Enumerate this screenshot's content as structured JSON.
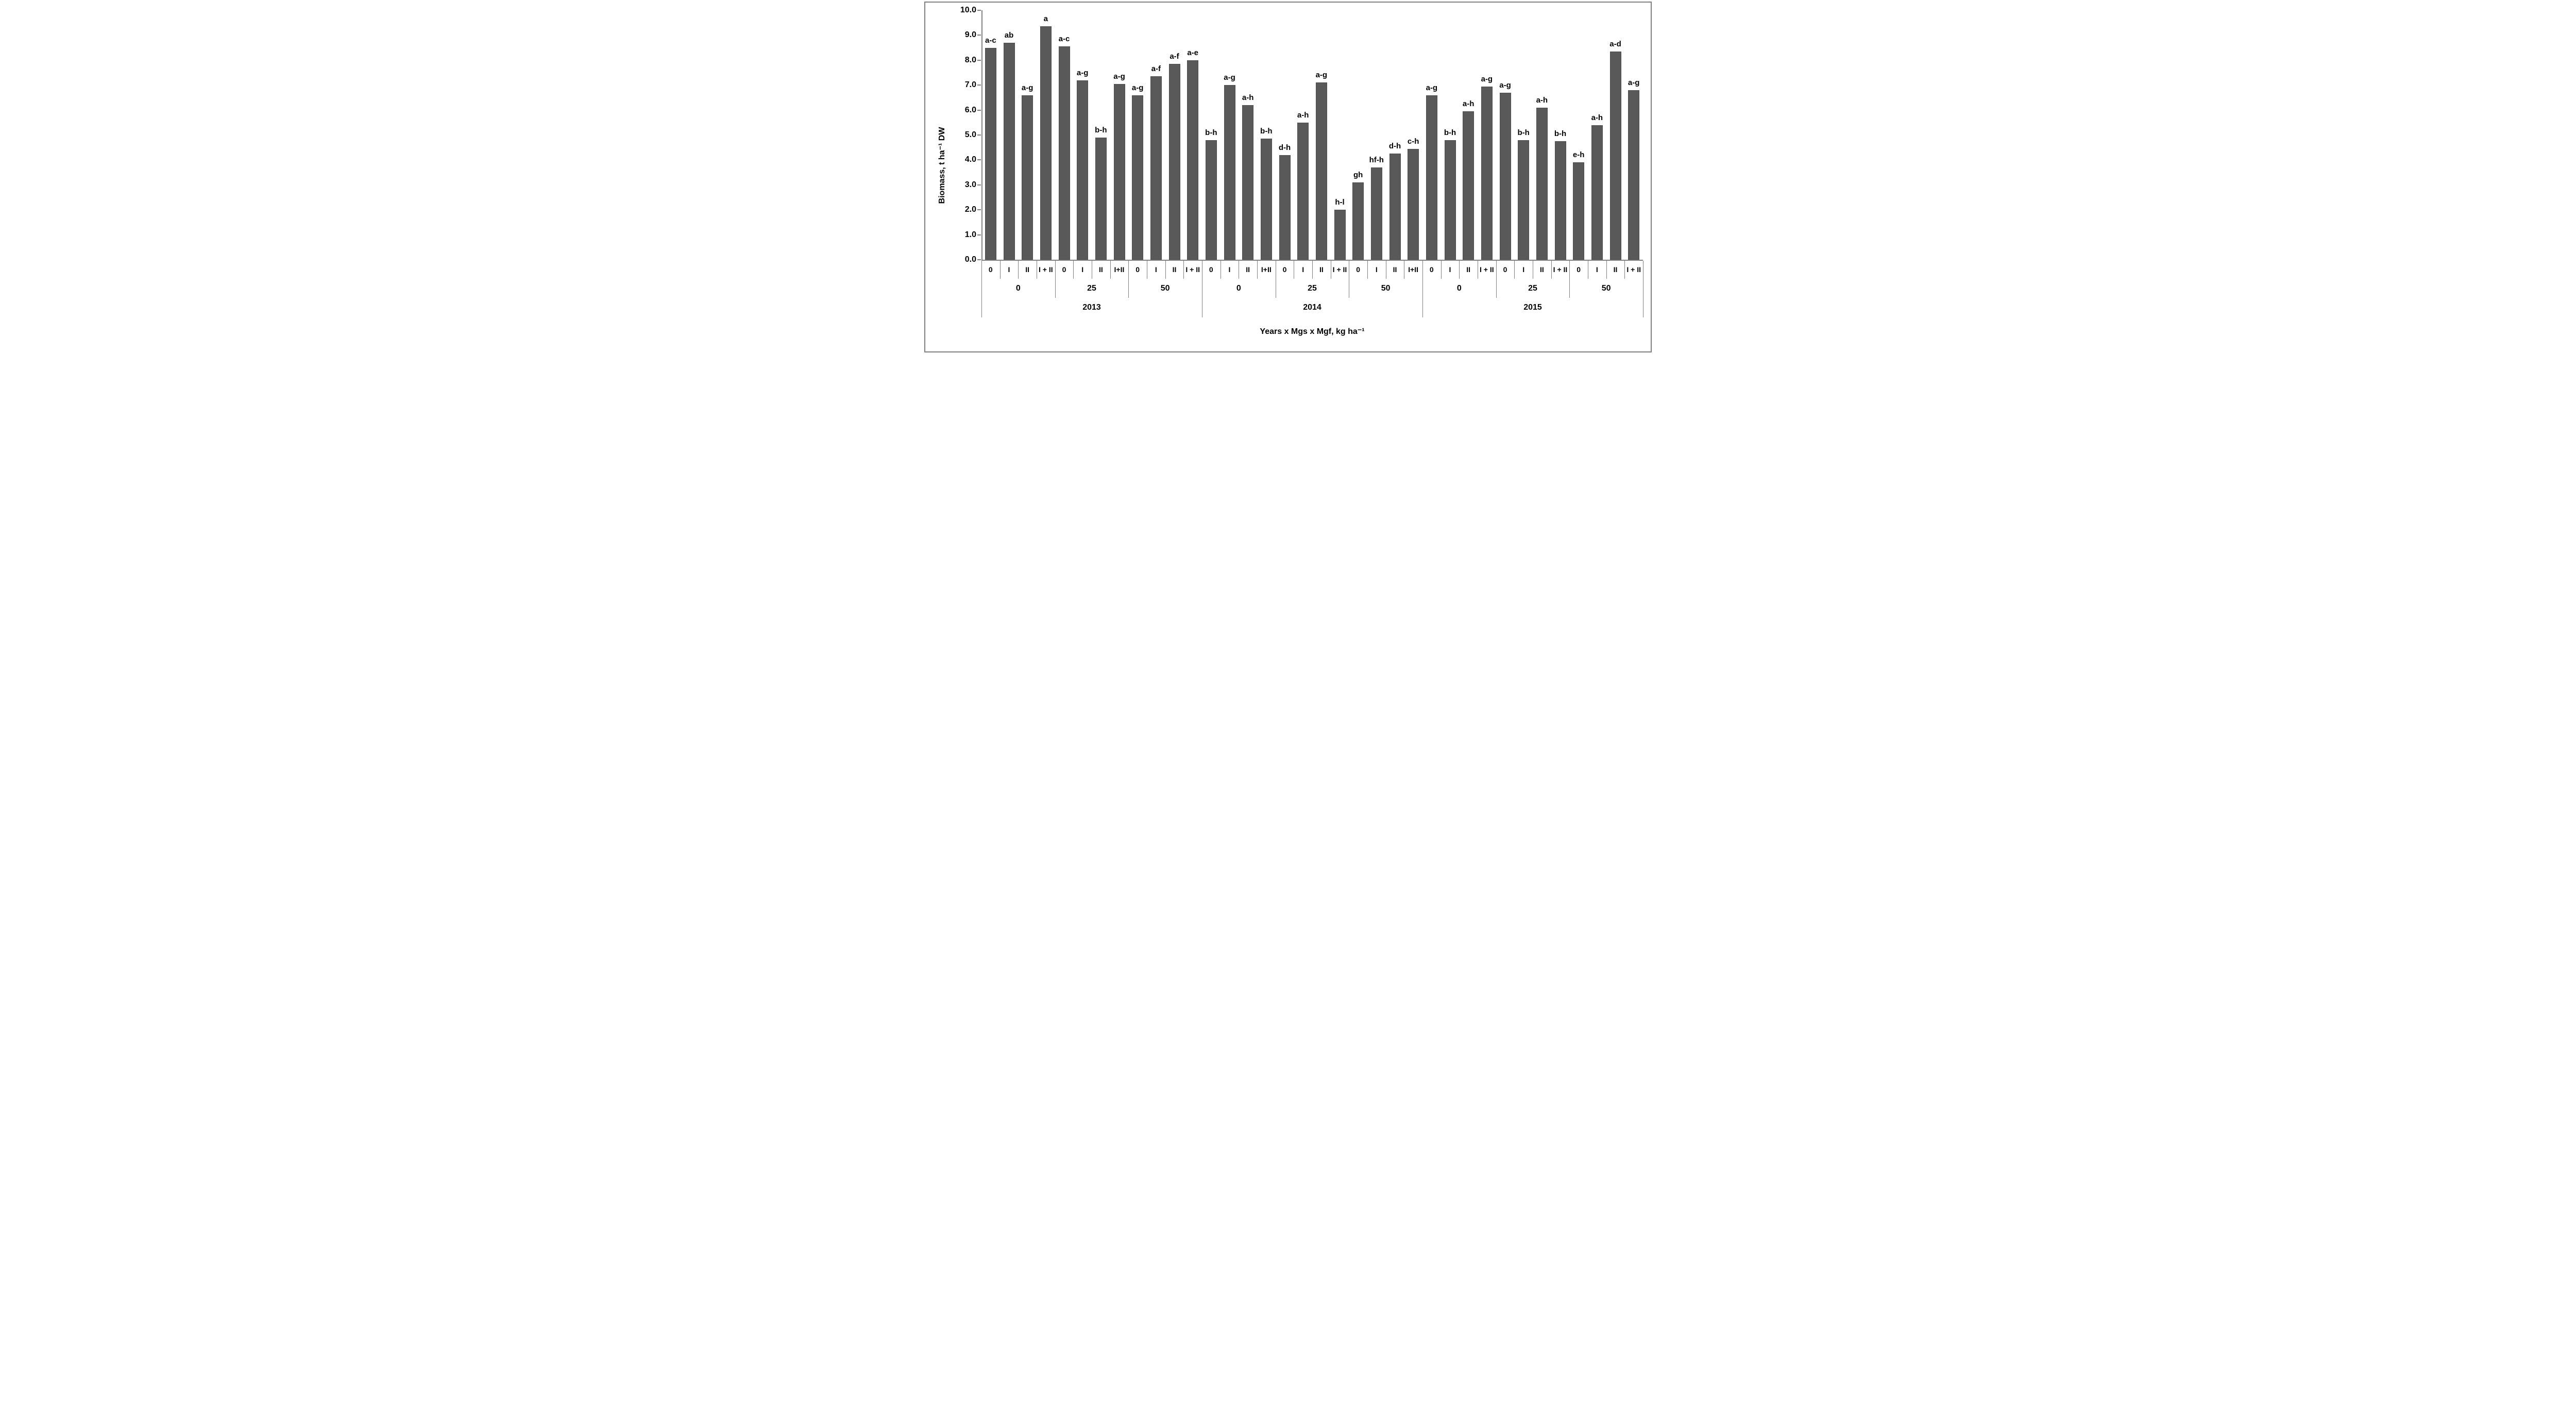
{
  "chart_data": {
    "type": "bar",
    "title": "",
    "ylabel": "Biomass, t ha⁻¹ DW",
    "xlabel": "Years x Mgs x Mgf, kg ha⁻¹",
    "ylim": [
      0,
      10
    ],
    "y_tick_labels": [
      "10.0",
      "9.0",
      "8.0",
      "7.0",
      "6.0",
      "5.0",
      "4.0",
      "3.0",
      "2.0",
      "1.0",
      "0.0"
    ],
    "grid": false,
    "legend_position": "none",
    "bar_color": "#595959",
    "axis_color": "#808080",
    "text_color": "#000000",
    "categories_hierarchy": [
      "Mgf (0, I, II, I+II)",
      "Mgs (0, 25, 50)",
      "Year (2013, 2014, 2015)"
    ],
    "groups": [
      {
        "year": "2013",
        "mgs": "0",
        "bars": [
          {
            "mgf": "0",
            "value": 8.5,
            "sig": "a-c"
          },
          {
            "mgf": "I",
            "value": 8.7,
            "sig": "ab"
          },
          {
            "mgf": "II",
            "value": 6.6,
            "sig": "a-g"
          },
          {
            "mgf": "I + II",
            "value": 9.35,
            "sig": "a"
          }
        ]
      },
      {
        "year": "2013",
        "mgs": "25",
        "bars": [
          {
            "mgf": "0",
            "value": 8.55,
            "sig": "a-c"
          },
          {
            "mgf": "I",
            "value": 7.2,
            "sig": "a-g"
          },
          {
            "mgf": "II",
            "value": 4.9,
            "sig": "b-h"
          },
          {
            "mgf": "I+II",
            "value": 7.05,
            "sig": "a-g"
          }
        ]
      },
      {
        "year": "2013",
        "mgs": "50",
        "bars": [
          {
            "mgf": "0",
            "value": 6.6,
            "sig": "a-g"
          },
          {
            "mgf": "I",
            "value": 7.35,
            "sig": "a-f"
          },
          {
            "mgf": "II",
            "value": 7.85,
            "sig": "a-f"
          },
          {
            "mgf": "I + II",
            "value": 8.0,
            "sig": "a-e"
          }
        ]
      },
      {
        "year": "2014",
        "mgs": "0",
        "bars": [
          {
            "mgf": "0",
            "value": 4.8,
            "sig": "b-h"
          },
          {
            "mgf": "I",
            "value": 7.0,
            "sig": "a-g"
          },
          {
            "mgf": "II",
            "value": 6.2,
            "sig": "a-h"
          },
          {
            "mgf": "I+II",
            "value": 4.85,
            "sig": "b-h"
          }
        ]
      },
      {
        "year": "2014",
        "mgs": "25",
        "bars": [
          {
            "mgf": "0",
            "value": 4.2,
            "sig": "d-h"
          },
          {
            "mgf": "I",
            "value": 5.5,
            "sig": "a-h"
          },
          {
            "mgf": "II",
            "value": 7.1,
            "sig": "a-g"
          },
          {
            "mgf": "I + II",
            "value": 2.0,
            "sig": "h-l"
          }
        ]
      },
      {
        "year": "2014",
        "mgs": "50",
        "bars": [
          {
            "mgf": "0",
            "value": 3.1,
            "sig": "gh"
          },
          {
            "mgf": "I",
            "value": 3.7,
            "sig": "hf-h"
          },
          {
            "mgf": "II",
            "value": 4.25,
            "sig": "d-h"
          },
          {
            "mgf": "I+II",
            "value": 4.45,
            "sig": "c-h"
          }
        ]
      },
      {
        "year": "2015",
        "mgs": "0",
        "bars": [
          {
            "mgf": "0",
            "value": 6.6,
            "sig": "a-g"
          },
          {
            "mgf": "I",
            "value": 4.8,
            "sig": "b-h"
          },
          {
            "mgf": "II",
            "value": 5.95,
            "sig": "a-h"
          },
          {
            "mgf": "I + II",
            "value": 6.95,
            "sig": "a-g"
          }
        ]
      },
      {
        "year": "2015",
        "mgs": "25",
        "bars": [
          {
            "mgf": "0",
            "value": 6.7,
            "sig": "a-g"
          },
          {
            "mgf": "I",
            "value": 4.8,
            "sig": "b-h"
          },
          {
            "mgf": "II",
            "value": 6.1,
            "sig": "a-h"
          },
          {
            "mgf": "I + II",
            "value": 4.75,
            "sig": "b-h"
          }
        ]
      },
      {
        "year": "2015",
        "mgs": "50",
        "bars": [
          {
            "mgf": "0",
            "value": 3.9,
            "sig": "e-h"
          },
          {
            "mgf": "I",
            "value": 5.4,
            "sig": "a-h"
          },
          {
            "mgf": "II",
            "value": 8.35,
            "sig": "a-d"
          },
          {
            "mgf": "I + II",
            "value": 6.8,
            "sig": "a-g"
          }
        ]
      }
    ]
  }
}
